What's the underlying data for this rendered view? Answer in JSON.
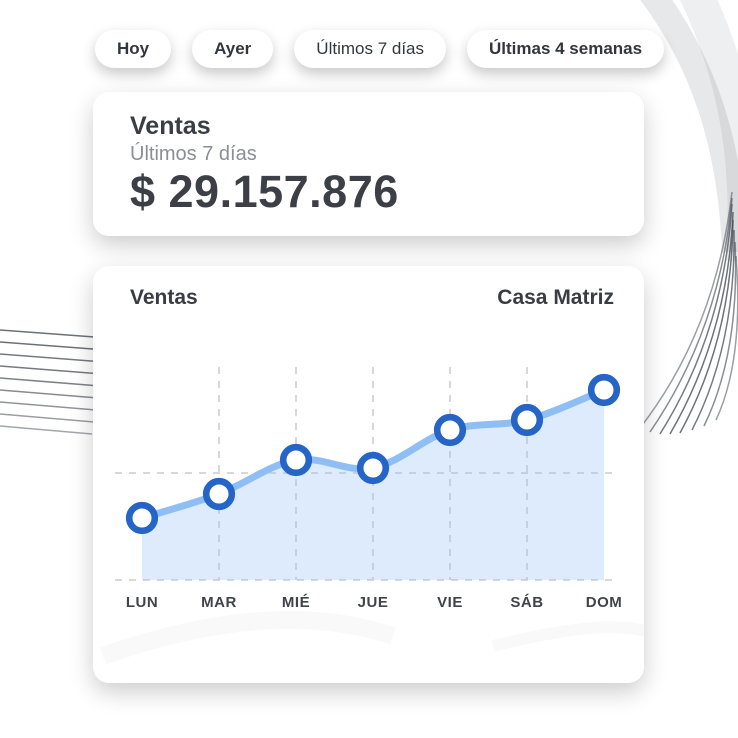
{
  "filters": {
    "items": [
      {
        "label": "Hoy"
      },
      {
        "label": "Ayer"
      },
      {
        "label": "Últimos 7 días"
      },
      {
        "label": "Últimas 4 semanas"
      }
    ]
  },
  "summary_card": {
    "title": "Ventas",
    "subtitle": "Últimos 7 días",
    "amount": "$ 29.157.876"
  },
  "chart_card": {
    "title": "Ventas",
    "branch": "Casa Matriz"
  },
  "chart_data": {
    "type": "area",
    "title": "Ventas",
    "series_name": "Casa Matriz",
    "categories": [
      "LUN",
      "MAR",
      "MIÉ",
      "JUE",
      "VIE",
      "SÁB",
      "DOM"
    ],
    "values": [
      31,
      43,
      60,
      56,
      75,
      80,
      95
    ],
    "values_estimated": true,
    "xlabel": "",
    "ylabel": "",
    "ylim": [
      0,
      100
    ],
    "grid": "dashed",
    "legend": "none"
  },
  "colors": {
    "accent_blue": "#2465C7",
    "line_blue": "#8FBEF5",
    "area_blue_rgba": "rgba(144,190,244,0.30)",
    "grid_gray": "#D8D8D8",
    "label_dark": "#3F444B",
    "text_dark": "#3A3E44",
    "text_gray": "#8A8F96"
  }
}
